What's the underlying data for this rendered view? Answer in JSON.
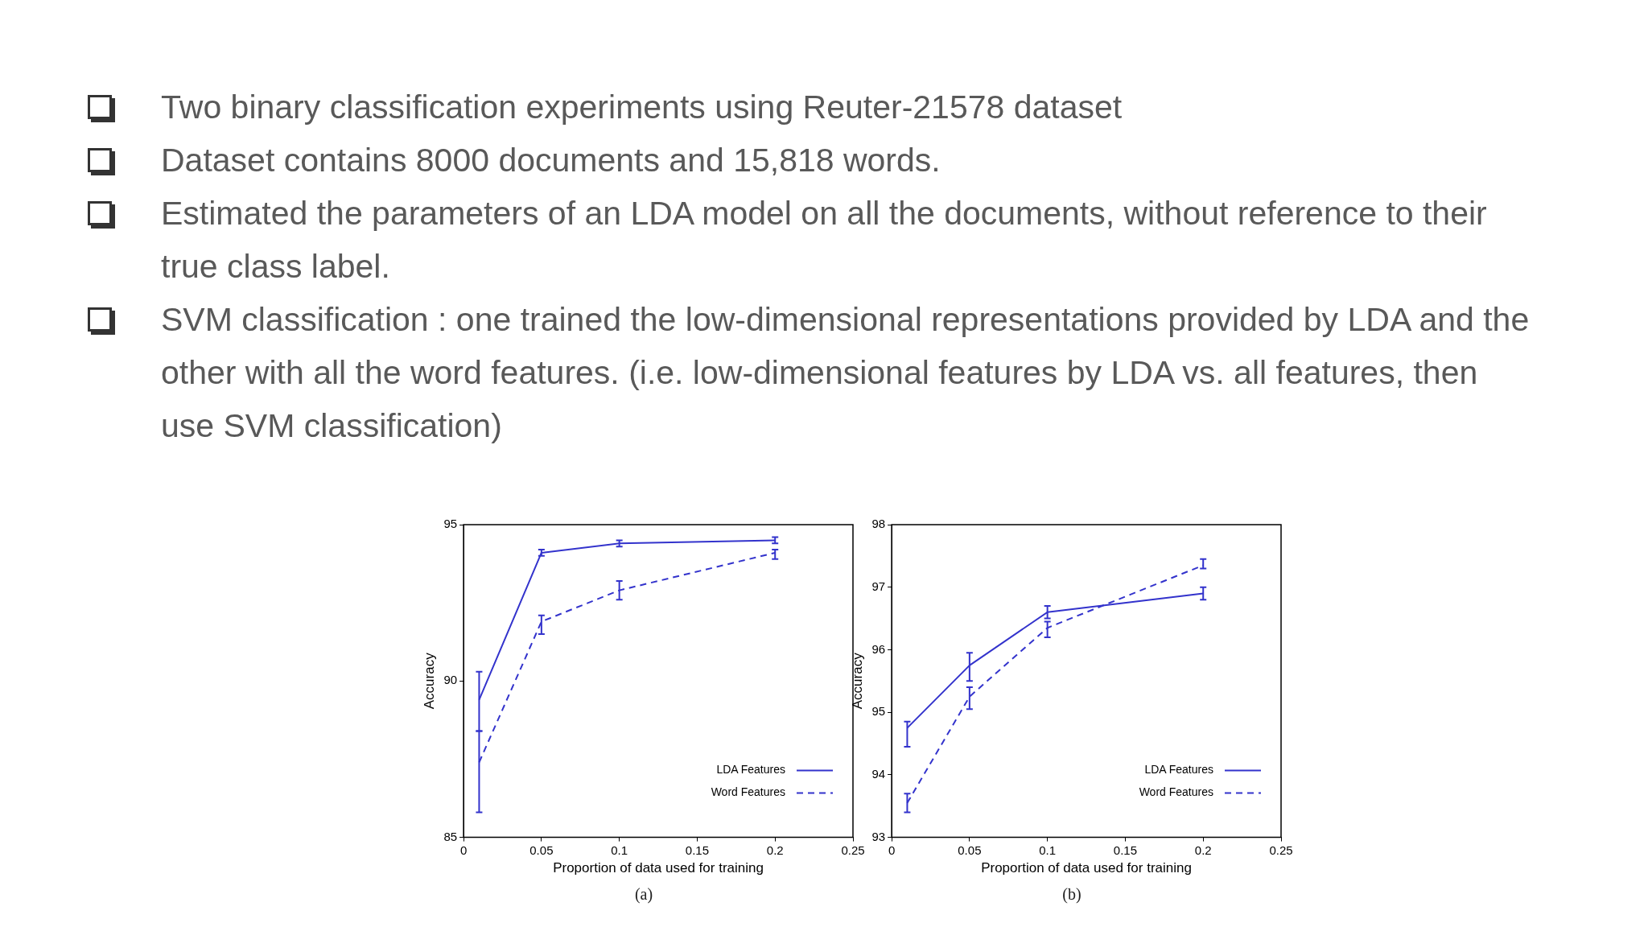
{
  "chart_data": [
    {
      "type": "line",
      "subtitle": "(a)",
      "xlabel": "Proportion of data used for training",
      "ylabel": "Accuracy",
      "annotations": [
        "Two binary classification experiments using Reuter-21578 dataset",
        "Dataset contains 8000 documents and 15,818 words.",
        "Estimated the parameters of an LDA model on all the documents, without reference to their true class label.",
        "SVM classification : one trained the low-dimensional representations provided by LDA and the other with all the word features. (i.e. low-dimensional features by LDA vs. all features, then use SVM classification)"
      ],
      "x": [
        0.01,
        0.05,
        0.1,
        0.2
      ],
      "series": [
        {
          "name": "LDA Features",
          "color": "#3333cc",
          "line_style": "solid",
          "values": [
            89.4,
            94.1,
            94.4,
            94.5
          ],
          "errors": [
            [
              88.4,
              90.3
            ],
            [
              94.0,
              94.2
            ],
            [
              94.3,
              94.5
            ],
            [
              94.4,
              94.6
            ]
          ]
        },
        {
          "name": "Word Features",
          "color": "#3333cc",
          "line_style": "dashed",
          "values": [
            87.4,
            91.9,
            92.9,
            94.1
          ],
          "errors": [
            [
              85.8,
              88.4
            ],
            [
              91.5,
              92.1
            ],
            [
              92.6,
              93.2
            ],
            [
              93.9,
              94.2
            ]
          ]
        }
      ],
      "xlim": [
        0,
        0.25
      ],
      "xticks": [
        0,
        0.05,
        0.1,
        0.15,
        0.2,
        0.25
      ],
      "ylim": [
        85,
        95
      ],
      "yticks": [
        85,
        90,
        95
      ],
      "grid": false,
      "legend": "bottom right"
    },
    {
      "type": "line",
      "subtitle": "(b)",
      "xlabel": "Proportion of data used for training",
      "ylabel": "Accuracy",
      "x": [
        0.01,
        0.05,
        0.1,
        0.2
      ],
      "series": [
        {
          "name": "LDA Features",
          "color": "#3333cc",
          "line_style": "solid",
          "values": [
            94.75,
            95.75,
            96.6,
            96.9
          ],
          "errors": [
            [
              94.45,
              94.85
            ],
            [
              95.5,
              95.95
            ],
            [
              96.5,
              96.7
            ],
            [
              96.8,
              97.0
            ]
          ]
        },
        {
          "name": "Word Features",
          "color": "#3333cc",
          "line_style": "dashed",
          "values": [
            93.55,
            95.25,
            96.35,
            97.35
          ],
          "errors": [
            [
              93.4,
              93.7
            ],
            [
              95.05,
              95.4
            ],
            [
              96.2,
              96.45
            ],
            [
              97.3,
              97.45
            ]
          ]
        }
      ],
      "xlim": [
        0,
        0.25
      ],
      "xticks": [
        0,
        0.05,
        0.1,
        0.15,
        0.2,
        0.25
      ],
      "ylim": [
        93,
        98
      ],
      "yticks": [
        93,
        94,
        95,
        96,
        97,
        98
      ],
      "grid": false,
      "legend": "bottom right"
    }
  ]
}
